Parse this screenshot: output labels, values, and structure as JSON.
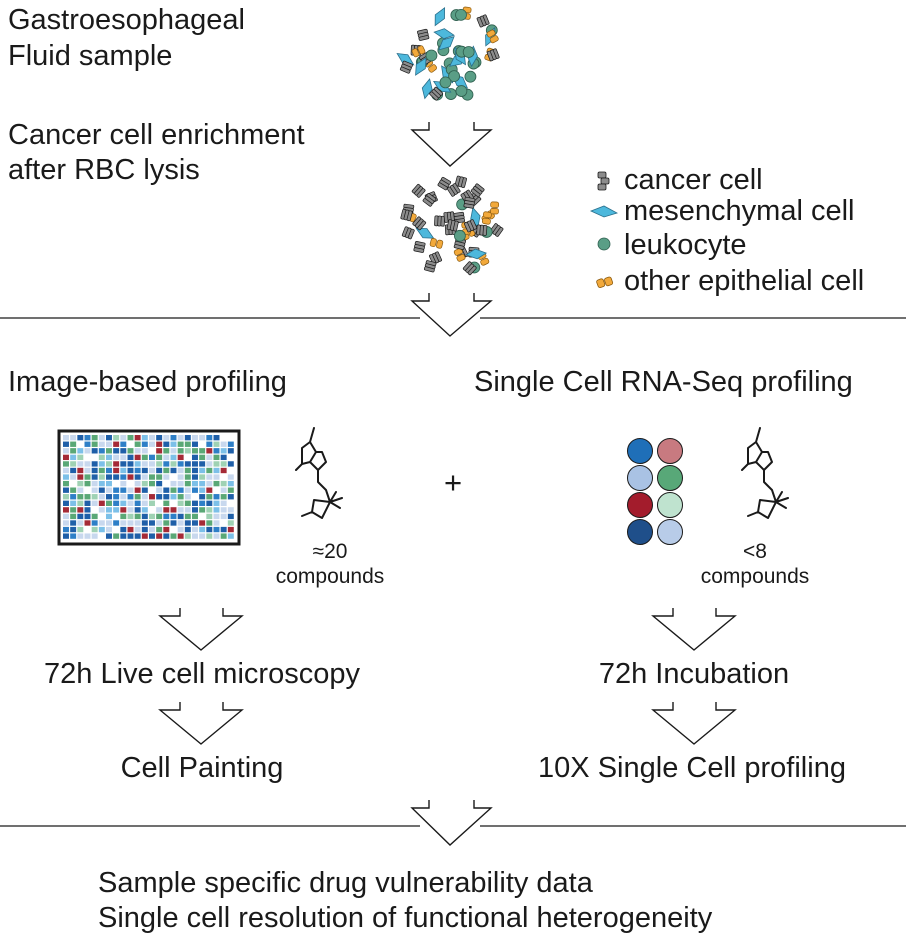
{
  "step1": {
    "line1": "Gastroesophageal",
    "line2": "Fluid sample"
  },
  "step2": {
    "line1": "Cancer cell enrichment",
    "line2": "after RBC lysis"
  },
  "legend": {
    "items": [
      {
        "label": "cancer cell",
        "icon": "cancer-cell-icon",
        "color": "#8c8c8c"
      },
      {
        "label": "mesenchymal cell",
        "icon": "mesenchymal-cell-icon",
        "color": "#4db8dc"
      },
      {
        "label": "leukocyte",
        "icon": "leukocyte-icon",
        "color": "#5a9e86"
      },
      {
        "label": "other epithelial cell",
        "icon": "epithelial-cell-icon",
        "color": "#f2a93b"
      }
    ]
  },
  "left_branch": {
    "title": "Image-based profiling",
    "compounds_count": "≈20",
    "compounds_label": "compounds",
    "step1": "72h Live cell microscopy",
    "step2": "Cell Painting"
  },
  "plus": "+",
  "right_branch": {
    "title": "Single Cell RNA-Seq profiling",
    "compounds_count": "<8",
    "compounds_label": "compounds",
    "step1": "72h Incubation",
    "step2": "10X Single Cell profiling"
  },
  "result": {
    "line1": "Sample specific drug vulnerability data",
    "line2": "Single cell resolution of functional heterogeneity"
  },
  "colors": {
    "plate_palette": [
      "#1f5fa8",
      "#2e7fc7",
      "#a52a36",
      "#5aa876",
      "#c8d8ee",
      "#7cc0e8",
      "#ffffff",
      "#9fd2b4"
    ],
    "well_colors": [
      "#1f6fb8",
      "#c87a80",
      "#a9c2e4",
      "#58a878",
      "#a31c2c",
      "#bfe3cf",
      "#1f4f8a",
      "#b8cce8"
    ]
  }
}
